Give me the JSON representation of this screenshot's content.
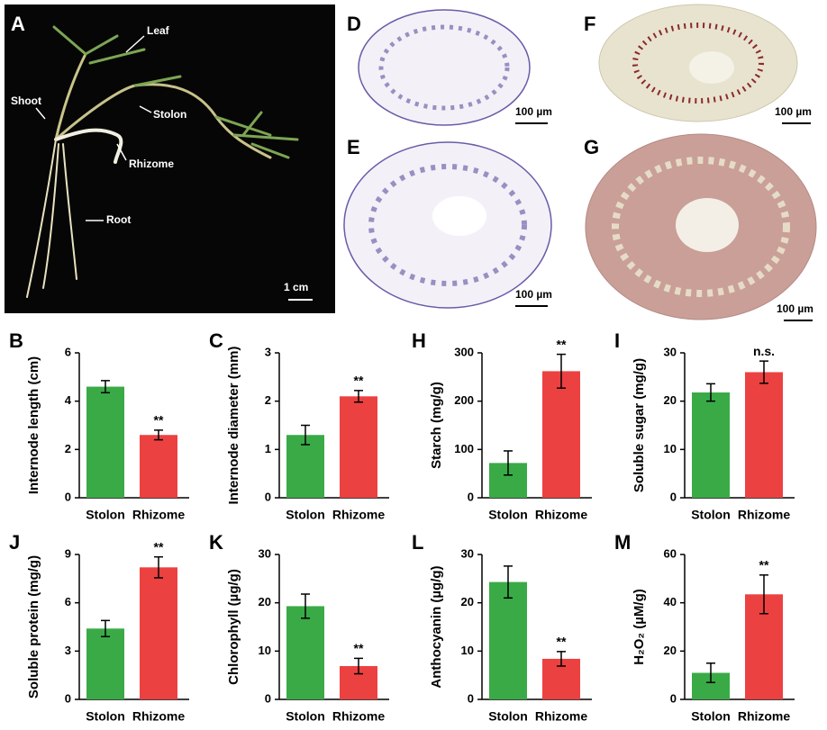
{
  "photo_panels": [
    {
      "letter": "A",
      "labels": [
        "Leaf",
        "Shoot",
        "Stolon",
        "Rhizome",
        "Root"
      ],
      "scale": "1 cm"
    },
    {
      "letter": "D",
      "scale": "100 µm"
    },
    {
      "letter": "E",
      "scale": "100 µm"
    },
    {
      "letter": "F",
      "scale": "100 µm"
    },
    {
      "letter": "G",
      "scale": "100 µm"
    }
  ],
  "chart_data": [
    {
      "type": "bar",
      "panel": "B",
      "ylabel": "Internode length (cm)",
      "categories": [
        "Stolon",
        "Rhizome"
      ],
      "values": [
        4.6,
        2.6
      ],
      "errors": [
        0.25,
        0.2
      ],
      "significance": [
        null,
        "**"
      ],
      "colors": [
        "#3aaa47",
        "#ec4141"
      ],
      "ylim": [
        0,
        6
      ],
      "yticks": [
        0,
        2,
        4,
        6
      ]
    },
    {
      "type": "bar",
      "panel": "C",
      "ylabel": "Internode diameter (mm)",
      "categories": [
        "Stolon",
        "Rhizome"
      ],
      "values": [
        1.3,
        2.1
      ],
      "errors": [
        0.2,
        0.12
      ],
      "significance": [
        null,
        "**"
      ],
      "colors": [
        "#3aaa47",
        "#ec4141"
      ],
      "ylim": [
        0,
        3
      ],
      "yticks": [
        0,
        1,
        2,
        3
      ]
    },
    {
      "type": "bar",
      "panel": "H",
      "ylabel": "Starch (mg/g)",
      "categories": [
        "Stolon",
        "Rhizome"
      ],
      "values": [
        72,
        262
      ],
      "errors": [
        25,
        35
      ],
      "significance": [
        null,
        "**"
      ],
      "colors": [
        "#3aaa47",
        "#ec4141"
      ],
      "ylim": [
        0,
        300
      ],
      "yticks": [
        0,
        100,
        200,
        300
      ]
    },
    {
      "type": "bar",
      "panel": "I",
      "ylabel": "Soluble sugar (mg/g)",
      "categories": [
        "Stolon",
        "Rhizome"
      ],
      "values": [
        21.8,
        26
      ],
      "errors": [
        1.8,
        2.3
      ],
      "significance": [
        null,
        "n.s."
      ],
      "colors": [
        "#3aaa47",
        "#ec4141"
      ],
      "ylim": [
        0,
        30
      ],
      "yticks": [
        0,
        10,
        20,
        30
      ]
    },
    {
      "type": "bar",
      "panel": "J",
      "ylabel": "Soluble protein (mg/g)",
      "categories": [
        "Stolon",
        "Rhizome"
      ],
      "values": [
        4.4,
        8.2
      ],
      "errors": [
        0.5,
        0.65
      ],
      "significance": [
        null,
        "**"
      ],
      "colors": [
        "#3aaa47",
        "#ec4141"
      ],
      "ylim": [
        0,
        9
      ],
      "yticks": [
        0,
        3,
        6,
        9
      ]
    },
    {
      "type": "bar",
      "panel": "K",
      "ylabel": "Chlorophyll (µg/g)",
      "categories": [
        "Stolon",
        "Rhizome"
      ],
      "values": [
        19.3,
        6.9
      ],
      "errors": [
        2.5,
        1.6
      ],
      "significance": [
        null,
        "**"
      ],
      "colors": [
        "#3aaa47",
        "#ec4141"
      ],
      "ylim": [
        0,
        30
      ],
      "yticks": [
        0,
        10,
        20,
        30
      ]
    },
    {
      "type": "bar",
      "panel": "L",
      "ylabel": "Anthocyanin (µg/g)",
      "categories": [
        "Stolon",
        "Rhizome"
      ],
      "values": [
        24.3,
        8.4
      ],
      "errors": [
        3.3,
        1.5
      ],
      "significance": [
        null,
        "**"
      ],
      "colors": [
        "#3aaa47",
        "#ec4141"
      ],
      "ylim": [
        0,
        30
      ],
      "yticks": [
        0,
        10,
        20,
        30
      ]
    },
    {
      "type": "bar",
      "panel": "M",
      "ylabel": "H₂O₂ (µM/g)",
      "categories": [
        "Stolon",
        "Rhizome"
      ],
      "values": [
        11,
        43.5
      ],
      "errors": [
        4,
        8
      ],
      "significance": [
        null,
        "**"
      ],
      "colors": [
        "#3aaa47",
        "#ec4141"
      ],
      "ylim": [
        0,
        60
      ],
      "yticks": [
        0,
        20,
        40,
        60
      ]
    }
  ]
}
